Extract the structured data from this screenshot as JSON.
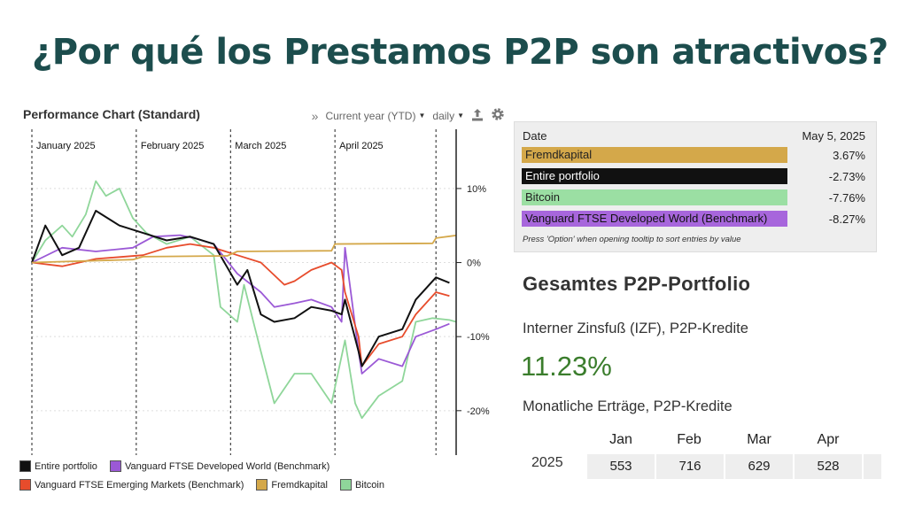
{
  "slide": {
    "title": "¿Por qué los Prestamos P2P son atractivos?"
  },
  "chart_panel": {
    "title": "Performance Chart (Standard)",
    "period_label": "Current year (YTD)",
    "interval_label": "daily",
    "icons": [
      "double-chevron-right-icon",
      "export-icon",
      "gear-icon"
    ]
  },
  "chart_data": {
    "type": "line",
    "title": "Performance Chart (Standard)",
    "x_axis": {
      "type": "date",
      "range": [
        "2025-01-01",
        "2025-05-07"
      ],
      "month_labels": [
        "January 2025",
        "February 2025",
        "March 2025",
        "April 2025"
      ]
    },
    "y_axis": {
      "unit": "%",
      "range": [
        -26,
        18
      ],
      "ticks": [
        10,
        0,
        -10,
        -20
      ],
      "tick_labels": [
        "10%",
        "0%",
        "-10%",
        "-20%"
      ],
      "position": "right"
    },
    "grid": {
      "horizontal": true,
      "vertical_month_lines": true
    },
    "legend": {
      "placement": "bottom-left"
    },
    "series": [
      {
        "name": "Bitcoin",
        "color": "#8fd69a",
        "x": [
          "2025-01-01",
          "2025-01-05",
          "2025-01-10",
          "2025-01-13",
          "2025-01-17",
          "2025-01-20",
          "2025-01-23",
          "2025-01-27",
          "2025-01-31",
          "2025-02-04",
          "2025-02-10",
          "2025-02-17",
          "2025-02-24",
          "2025-02-26",
          "2025-03-03",
          "2025-03-05",
          "2025-03-10",
          "2025-03-14",
          "2025-03-20",
          "2025-03-25",
          "2025-03-31",
          "2025-04-04",
          "2025-04-07",
          "2025-04-09",
          "2025-04-14",
          "2025-04-21",
          "2025-04-25",
          "2025-04-30",
          "2025-05-05",
          "2025-05-07"
        ],
        "y": [
          0,
          3,
          5,
          3.5,
          6.5,
          11,
          9,
          10,
          6,
          4,
          2.5,
          3.5,
          1,
          -6,
          -8,
          -3,
          -12,
          -19,
          -15,
          -15,
          -19,
          -10.5,
          -19,
          -21,
          -18,
          -16,
          -8,
          -7.5,
          -7.76,
          -8
        ]
      },
      {
        "name": "Vanguard FTSE Developed World (Benchmark)",
        "color": "#9b59d6",
        "x": [
          "2025-01-01",
          "2025-01-10",
          "2025-01-20",
          "2025-01-31",
          "2025-02-06",
          "2025-02-14",
          "2025-02-19",
          "2025-02-24",
          "2025-03-03",
          "2025-03-10",
          "2025-03-14",
          "2025-03-20",
          "2025-03-25",
          "2025-03-31",
          "2025-04-03",
          "2025-04-04",
          "2025-04-08",
          "2025-04-09",
          "2025-04-14",
          "2025-04-21",
          "2025-04-25",
          "2025-05-01",
          "2025-05-05"
        ],
        "y": [
          0,
          2,
          1.5,
          2,
          3.5,
          3.7,
          3.2,
          2.5,
          -1.5,
          -4,
          -6,
          -5.5,
          -5,
          -6,
          -8,
          2,
          -12,
          -15,
          -13,
          -14,
          -10,
          -9,
          -8.27
        ]
      },
      {
        "name": "Vanguard FTSE Emerging Markets (Benchmark)",
        "color": "#e74c2c",
        "x": [
          "2025-01-01",
          "2025-01-10",
          "2025-01-20",
          "2025-02-03",
          "2025-02-10",
          "2025-02-17",
          "2025-02-24",
          "2025-03-03",
          "2025-03-10",
          "2025-03-17",
          "2025-03-20",
          "2025-03-25",
          "2025-03-31",
          "2025-04-03",
          "2025-04-04",
          "2025-04-08",
          "2025-04-09",
          "2025-04-14",
          "2025-04-21",
          "2025-04-25",
          "2025-05-01",
          "2025-05-05"
        ],
        "y": [
          0,
          -0.5,
          0.5,
          1,
          2,
          2.5,
          2,
          1,
          0,
          -3,
          -2.5,
          -1,
          0,
          -1,
          -4,
          -10,
          -14,
          -11,
          -10,
          -7,
          -4,
          -4.5
        ]
      },
      {
        "name": "Entire portfolio",
        "color": "#111111",
        "x": [
          "2025-01-01",
          "2025-01-05",
          "2025-01-10",
          "2025-01-15",
          "2025-01-20",
          "2025-01-27",
          "2025-02-03",
          "2025-02-10",
          "2025-02-17",
          "2025-02-24",
          "2025-03-03",
          "2025-03-06",
          "2025-03-10",
          "2025-03-14",
          "2025-03-20",
          "2025-03-25",
          "2025-03-31",
          "2025-04-03",
          "2025-04-04",
          "2025-04-08",
          "2025-04-09",
          "2025-04-14",
          "2025-04-21",
          "2025-04-25",
          "2025-05-01",
          "2025-05-05"
        ],
        "y": [
          0,
          5,
          1,
          2,
          7,
          5,
          4,
          3,
          3.5,
          2.5,
          -3,
          -1,
          -7,
          -8,
          -7.5,
          -6,
          -6.5,
          -7,
          -5,
          -12,
          -14,
          -10,
          -9,
          -5,
          -2,
          -2.73
        ]
      },
      {
        "name": "Fremdkapital",
        "color": "#d4a84a",
        "x": [
          "2025-01-01",
          "2025-01-31",
          "2025-02-03",
          "2025-02-28",
          "2025-03-03",
          "2025-03-31",
          "2025-04-01",
          "2025-04-30",
          "2025-05-01",
          "2025-05-07"
        ],
        "y": [
          0,
          0.4,
          0.8,
          0.9,
          1.5,
          1.6,
          2.5,
          2.6,
          3.3,
          3.67
        ]
      }
    ]
  },
  "tooltip": {
    "date_label": "Date",
    "date_value": "May 5, 2025",
    "rows": [
      {
        "label": "Fremdkapital",
        "value": "3.67%",
        "color": "#d4a84a",
        "text_color": "#222222"
      },
      {
        "label": "Entire portfolio",
        "value": "-2.73%",
        "color": "#111111",
        "text_color": "#ffffff"
      },
      {
        "label": "Bitcoin",
        "value": "-7.76%",
        "color": "#9bdfa3",
        "text_color": "#222222"
      },
      {
        "label": "Vanguard FTSE Developed World (Benchmark)",
        "value": "-8.27%",
        "color": "#a766dc",
        "text_color": "#111111"
      }
    ],
    "note": "Press 'Option' when opening tooltip to sort entries by value"
  },
  "portfolio": {
    "title": "Gesamtes P2P-Portfolio",
    "irr_label": "Interner Zinsfuß (IZF), P2P-Kredite",
    "irr_value": "11.23%",
    "monthly_label": "Monatliche Erträge, P2P-Kredite",
    "months": [
      "Jan",
      "Feb",
      "Mar",
      "Apr"
    ],
    "year": "2025",
    "values": [
      "553",
      "716",
      "629",
      "528"
    ]
  }
}
